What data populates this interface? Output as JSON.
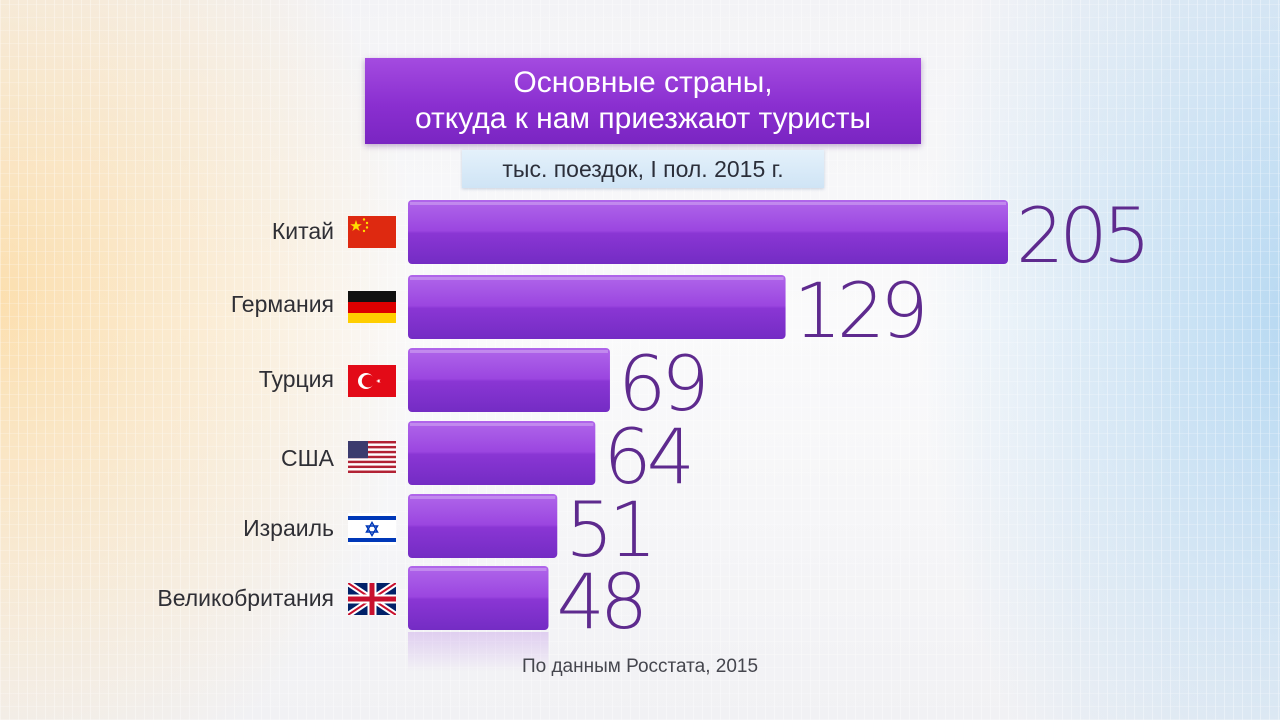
{
  "title_line1": "Основные страны,",
  "title_line2": "откуда к нам приезжают туристы",
  "subtitle": "тыс. поездок, I пол. 2015 г.",
  "source": "По данным Росстата, 2015",
  "colors": {
    "bar_top": "#a95ee6",
    "bar_bottom": "#7a2fc9",
    "value_text": "#5e2a8e",
    "title_bg": "#8a2fd0"
  },
  "chart_data": {
    "type": "bar",
    "orientation": "horizontal",
    "title": "Основные страны, откуда к нам приезжают туристы",
    "subtitle": "тыс. поездок, I пол. 2015 г.",
    "categories": [
      "Китай",
      "Германия",
      "Турция",
      "США",
      "Израиль",
      "Великобритания"
    ],
    "flags": [
      "china-flag-icon",
      "germany-flag-icon",
      "turkey-flag-icon",
      "usa-flag-icon",
      "israel-flag-icon",
      "uk-flag-icon"
    ],
    "values": [
      205,
      129,
      69,
      64,
      51,
      48
    ],
    "value_labels": [
      "205",
      "129",
      "69",
      "64",
      "51",
      "48"
    ],
    "xlim": [
      0,
      205
    ],
    "grid": false,
    "legend": "none"
  }
}
